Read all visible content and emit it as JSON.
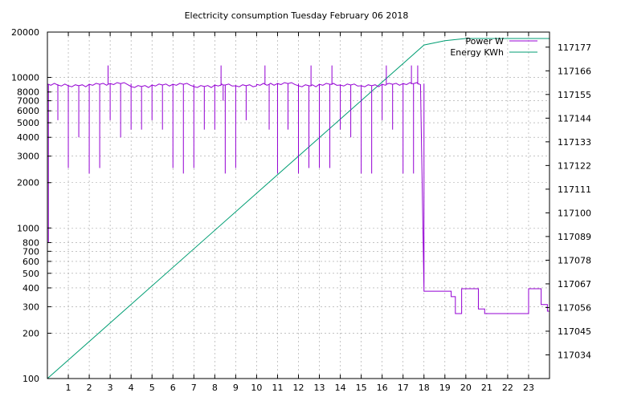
{
  "chart_data": {
    "type": "line",
    "title": "Electricity consumption Tuesday February 06 2018",
    "xlabel": "",
    "ylabel": "",
    "xlim": [
      0,
      24
    ],
    "x_ticks": [
      1,
      2,
      3,
      4,
      5,
      6,
      7,
      8,
      9,
      10,
      11,
      12,
      13,
      14,
      15,
      16,
      17,
      18,
      19,
      20,
      21,
      22,
      23
    ],
    "y_left": {
      "scale": "log",
      "range": [
        100,
        20000
      ],
      "ticks": [
        100,
        200,
        300,
        400,
        500,
        600,
        700,
        800,
        1000,
        2000,
        3000,
        4000,
        5000,
        6000,
        7000,
        8000,
        10000,
        20000
      ]
    },
    "y_right": {
      "scale": "linear",
      "range": [
        117023,
        117184
      ],
      "ticks": [
        117034,
        117045,
        117056,
        117067,
        117078,
        117089,
        117100,
        117111,
        117122,
        117133,
        117144,
        117155,
        117166,
        117177
      ]
    },
    "grid": true,
    "legend_position": "top-right",
    "series": [
      {
        "name": "Power W",
        "axis": "left",
        "color": "#9400d3",
        "base_segments": [
          {
            "x": [
              0.0,
              0.5
            ],
            "y": 9000
          },
          {
            "x": [
              0.5,
              1.0
            ],
            "y": 8900
          },
          {
            "x": [
              1.0,
              2.0
            ],
            "y": 8800
          },
          {
            "x": [
              2.0,
              3.0
            ],
            "y": 9000
          },
          {
            "x": [
              3.0,
              4.0
            ],
            "y": 9100
          },
          {
            "x": [
              4.0,
              5.0
            ],
            "y": 8700
          },
          {
            "x": [
              5.0,
              6.0
            ],
            "y": 8900
          },
          {
            "x": [
              6.0,
              7.0
            ],
            "y": 9000
          },
          {
            "x": [
              7.0,
              8.0
            ],
            "y": 8700
          },
          {
            "x": [
              8.0,
              9.0
            ],
            "y": 8900
          },
          {
            "x": [
              9.0,
              10.0
            ],
            "y": 8800
          },
          {
            "x": [
              10.0,
              11.0
            ],
            "y": 9000
          },
          {
            "x": [
              11.0,
              12.0
            ],
            "y": 9100
          },
          {
            "x": [
              12.0,
              13.0
            ],
            "y": 8800
          },
          {
            "x": [
              13.0,
              14.0
            ],
            "y": 9000
          },
          {
            "x": [
              14.0,
              15.0
            ],
            "y": 8900
          },
          {
            "x": [
              15.0,
              16.0
            ],
            "y": 8800
          },
          {
            "x": [
              16.0,
              17.0
            ],
            "y": 9000
          },
          {
            "x": [
              17.0,
              18.0
            ],
            "y": 9100
          },
          {
            "x": [
              18.0,
              19.3
            ],
            "y": 380
          },
          {
            "x": [
              19.3,
              19.5
            ],
            "y": 350
          },
          {
            "x": [
              19.5,
              19.8
            ],
            "y": 270
          },
          {
            "x": [
              19.8,
              20.6
            ],
            "y": 395
          },
          {
            "x": [
              20.6,
              20.9
            ],
            "y": 290
          },
          {
            "x": [
              20.9,
              23.0
            ],
            "y": 270
          },
          {
            "x": [
              23.0,
              23.6
            ],
            "y": 395
          },
          {
            "x": [
              23.6,
              23.9
            ],
            "y": 310
          },
          {
            "x": [
              23.9,
              24.0
            ],
            "y": 280
          }
        ],
        "spikes": [
          {
            "x": 0.05,
            "y": 800
          },
          {
            "x": 0.5,
            "y": 5200
          },
          {
            "x": 1.0,
            "y": 2500
          },
          {
            "x": 1.5,
            "y": 4000
          },
          {
            "x": 2.0,
            "y": 2300
          },
          {
            "x": 2.5,
            "y": 2500
          },
          {
            "x": 2.9,
            "y": 12000
          },
          {
            "x": 3.0,
            "y": 5200
          },
          {
            "x": 3.5,
            "y": 4000
          },
          {
            "x": 4.0,
            "y": 4500
          },
          {
            "x": 4.5,
            "y": 4500
          },
          {
            "x": 5.0,
            "y": 5200
          },
          {
            "x": 5.5,
            "y": 4500
          },
          {
            "x": 6.0,
            "y": 2500
          },
          {
            "x": 6.5,
            "y": 2300
          },
          {
            "x": 7.0,
            "y": 2500
          },
          {
            "x": 7.5,
            "y": 4500
          },
          {
            "x": 8.0,
            "y": 4500
          },
          {
            "x": 8.3,
            "y": 12000
          },
          {
            "x": 8.4,
            "y": 7000
          },
          {
            "x": 8.5,
            "y": 2300
          },
          {
            "x": 9.0,
            "y": 2500
          },
          {
            "x": 9.5,
            "y": 5200
          },
          {
            "x": 10.4,
            "y": 12000
          },
          {
            "x": 10.6,
            "y": 4500
          },
          {
            "x": 11.0,
            "y": 2300
          },
          {
            "x": 11.5,
            "y": 4500
          },
          {
            "x": 12.0,
            "y": 2300
          },
          {
            "x": 12.5,
            "y": 2500
          },
          {
            "x": 12.6,
            "y": 12000
          },
          {
            "x": 13.0,
            "y": 2500
          },
          {
            "x": 13.5,
            "y": 2500
          },
          {
            "x": 13.6,
            "y": 12000
          },
          {
            "x": 14.0,
            "y": 4500
          },
          {
            "x": 14.5,
            "y": 4000
          },
          {
            "x": 15.0,
            "y": 2300
          },
          {
            "x": 15.5,
            "y": 2300
          },
          {
            "x": 16.0,
            "y": 5200
          },
          {
            "x": 16.2,
            "y": 12000
          },
          {
            "x": 16.5,
            "y": 4500
          },
          {
            "x": 17.0,
            "y": 2300
          },
          {
            "x": 17.4,
            "y": 12000
          },
          {
            "x": 17.5,
            "y": 2300
          },
          {
            "x": 17.7,
            "y": 12000
          },
          {
            "x": 18.0,
            "y": 2500
          }
        ]
      },
      {
        "name": "Energy KWh",
        "axis": "right",
        "color": "#009e73",
        "x": [
          0,
          18,
          19,
          20,
          21,
          22,
          23,
          24
        ],
        "y": [
          117023,
          117178,
          117180,
          117181,
          117181,
          117181,
          117181,
          117181
        ]
      }
    ]
  }
}
